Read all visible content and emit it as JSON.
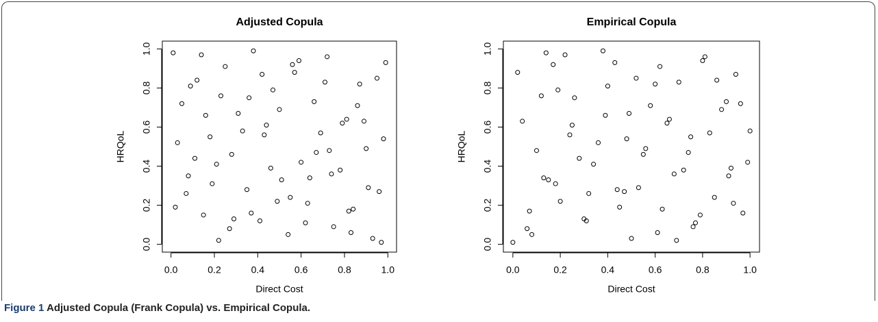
{
  "caption": {
    "label": "Figure 1",
    "text": "Adjusted Copula (Frank Copula) vs. Empirical Copula."
  },
  "chart_data": [
    {
      "type": "scatter",
      "title": "Adjusted Copula",
      "x_label": "Direct Cost",
      "y_label": "HRQoL",
      "xlim": [
        -0.04,
        1.04
      ],
      "ylim": [
        -0.04,
        1.04
      ],
      "xticks": [
        {
          "value": 0,
          "label": "0.0"
        },
        0.2,
        0.4,
        0.6,
        0.8,
        {
          "value": 1,
          "label": "1.0"
        }
      ],
      "yticks": [
        {
          "value": 0,
          "label": "0.0"
        },
        0.2,
        0.4,
        0.6,
        0.8,
        {
          "value": 1,
          "label": "1.0"
        }
      ],
      "x": [
        0.01,
        0.05,
        0.08,
        0.12,
        0.15,
        0.18,
        0.22,
        0.25,
        0.28,
        0.31,
        0.35,
        0.38,
        0.41,
        0.44,
        0.47,
        0.51,
        0.54,
        0.57,
        0.6,
        0.63,
        0.66,
        0.69,
        0.72,
        0.75,
        0.78,
        0.81,
        0.84,
        0.87,
        0.9,
        0.93,
        0.96,
        0.99,
        0.03,
        0.07,
        0.11,
        0.14,
        0.19,
        0.23,
        0.27,
        0.33,
        0.37,
        0.42,
        0.46,
        0.5,
        0.55,
        0.59,
        0.62,
        0.67,
        0.71,
        0.74,
        0.79,
        0.83,
        0.86,
        0.91,
        0.95,
        0.98,
        0.02,
        0.09,
        0.16,
        0.21,
        0.29,
        0.36,
        0.43,
        0.49,
        0.56,
        0.64,
        0.73,
        0.82,
        0.89,
        0.97
      ],
      "y": [
        0.98,
        0.72,
        0.35,
        0.84,
        0.15,
        0.55,
        0.02,
        0.91,
        0.46,
        0.67,
        0.28,
        0.99,
        0.12,
        0.61,
        0.79,
        0.33,
        0.05,
        0.88,
        0.42,
        0.21,
        0.73,
        0.57,
        0.96,
        0.09,
        0.38,
        0.64,
        0.18,
        0.82,
        0.49,
        0.03,
        0.27,
        0.93,
        0.52,
        0.26,
        0.44,
        0.97,
        0.31,
        0.76,
        0.08,
        0.58,
        0.16,
        0.87,
        0.39,
        0.69,
        0.24,
        0.94,
        0.11,
        0.47,
        0.83,
        0.36,
        0.62,
        0.06,
        0.71,
        0.29,
        0.85,
        0.54,
        0.19,
        0.81,
        0.66,
        0.41,
        0.13,
        0.75,
        0.56,
        0.22,
        0.92,
        0.34,
        0.48,
        0.17,
        0.63,
        0.01
      ]
    },
    {
      "type": "scatter",
      "title": "Empirical Copula",
      "x_label": "Direct Cost",
      "y_label": "HRQoL",
      "xlim": [
        -0.04,
        1.04
      ],
      "ylim": [
        -0.04,
        1.04
      ],
      "xticks": [
        {
          "value": 0,
          "label": "0.0"
        },
        0.2,
        0.4,
        0.6,
        0.8,
        {
          "value": 1,
          "label": "1.0"
        }
      ],
      "yticks": [
        {
          "value": 0,
          "label": "0.0"
        },
        0.2,
        0.4,
        0.6,
        0.8,
        {
          "value": 1,
          "label": "1.0"
        }
      ],
      "x": [
        0,
        0.04,
        0.07,
        0.1,
        0.13,
        0.17,
        0.2,
        0.24,
        0.26,
        0.3,
        0.34,
        0.39,
        0.4,
        0.45,
        0.48,
        0.52,
        0.53,
        0.58,
        0.61,
        0.65,
        0.68,
        0.7,
        0.74,
        0.77,
        0.8,
        0.85,
        0.88,
        0.92,
        0.94,
        0.97,
        1,
        0.06,
        0.12,
        0.18,
        0.22,
        0.28,
        0.32,
        0.36,
        0.43,
        0.47,
        0.5,
        0.56,
        0.6,
        0.63,
        0.66,
        0.72,
        0.76,
        0.81,
        0.83,
        0.9,
        0.93,
        0.99,
        0.02,
        0.08,
        0.15,
        0.19,
        0.25,
        0.31,
        0.38,
        0.44,
        0.49,
        0.55,
        0.62,
        0.69,
        0.75,
        0.79,
        0.86,
        0.91,
        0.96,
        0.14
      ],
      "y": [
        0.01,
        0.63,
        0.17,
        0.48,
        0.34,
        0.92,
        0.22,
        0.56,
        0.75,
        0.13,
        0.41,
        0.66,
        0.81,
        0.19,
        0.54,
        0.85,
        0.29,
        0.71,
        0.06,
        0.62,
        0.36,
        0.83,
        0.47,
        0.11,
        0.94,
        0.24,
        0.69,
        0.39,
        0.87,
        0.16,
        0.58,
        0.08,
        0.76,
        0.31,
        0.97,
        0.44,
        0.26,
        0.52,
        0.93,
        0.27,
        0.03,
        0.49,
        0.82,
        0.18,
        0.64,
        0.38,
        0.09,
        0.96,
        0.57,
        0.73,
        0.21,
        0.42,
        0.88,
        0.05,
        0.33,
        0.79,
        0.61,
        0.12,
        0.99,
        0.28,
        0.67,
        0.46,
        0.91,
        0.02,
        0.55,
        0.15,
        0.84,
        0.35,
        0.72,
        0.98
      ]
    }
  ]
}
